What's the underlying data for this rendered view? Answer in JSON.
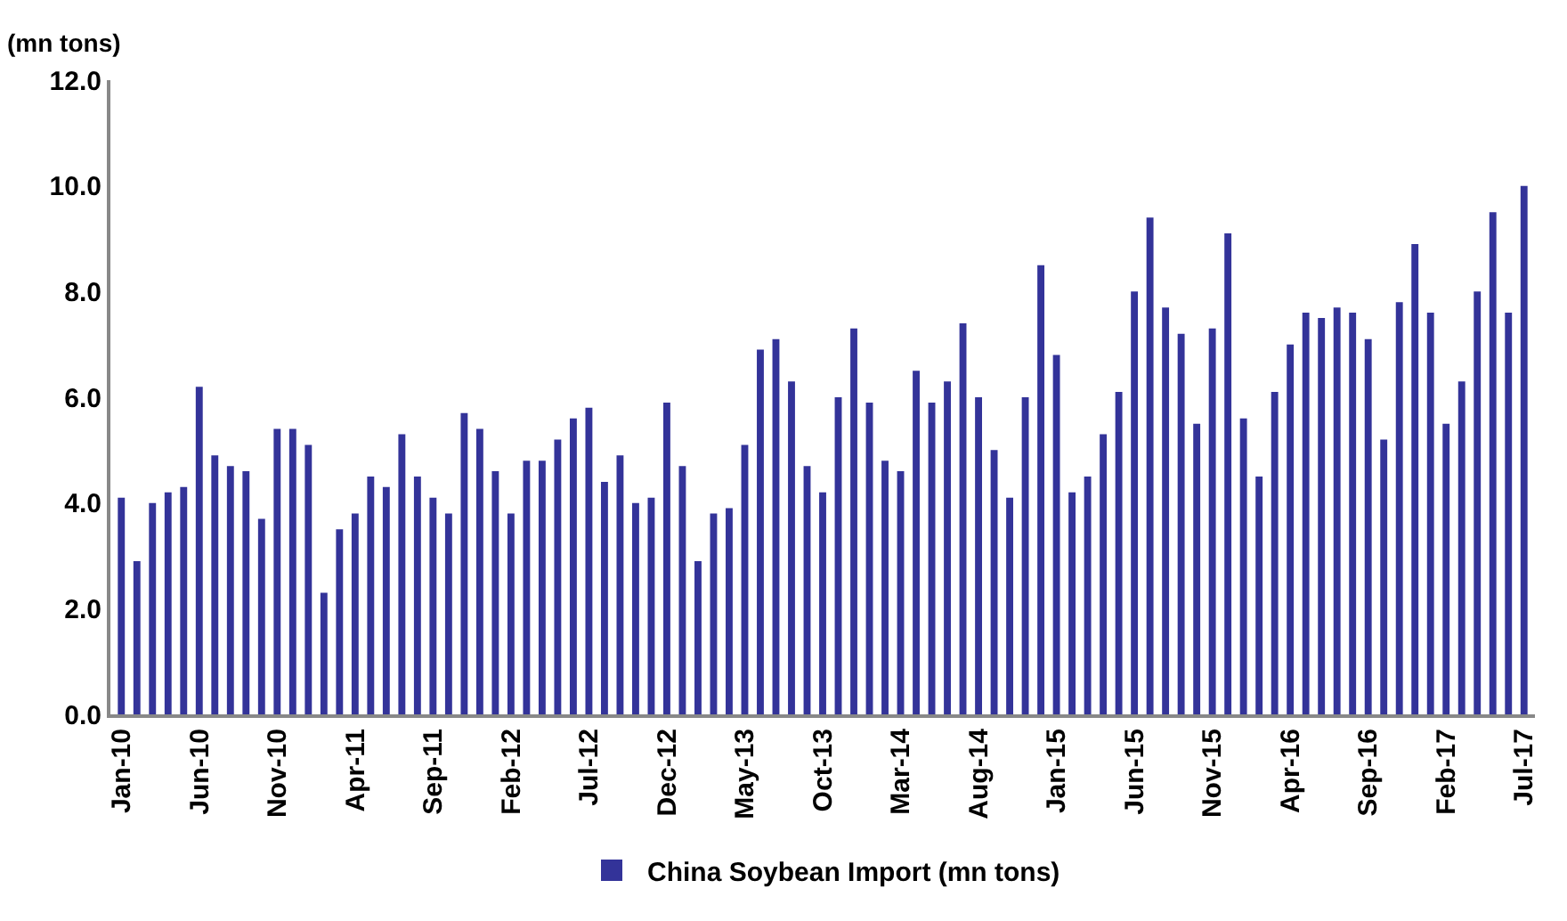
{
  "chart_data": {
    "type": "bar",
    "ylabel": "(mn tons)",
    "categories": [
      "Jan-10",
      null,
      null,
      null,
      null,
      "Jun-10",
      null,
      null,
      null,
      null,
      "Nov-10",
      null,
      null,
      null,
      null,
      "Apr-11",
      null,
      null,
      null,
      null,
      "Sep-11",
      null,
      null,
      null,
      null,
      "Feb-12",
      null,
      null,
      null,
      null,
      "Jul-12",
      null,
      null,
      null,
      null,
      "Dec-12",
      null,
      null,
      null,
      null,
      "May-13",
      null,
      null,
      null,
      null,
      "Oct-13",
      null,
      null,
      null,
      null,
      "Mar-14",
      null,
      null,
      null,
      null,
      "Aug-14",
      null,
      null,
      null,
      null,
      "Jan-15",
      null,
      null,
      null,
      null,
      "Jun-15",
      null,
      null,
      null,
      null,
      "Nov-15",
      null,
      null,
      null,
      null,
      "Apr-16",
      null,
      null,
      null,
      null,
      "Sep-16",
      null,
      null,
      null,
      null,
      "Feb-17",
      null,
      null,
      null,
      null,
      "Jul-17"
    ],
    "series": [
      {
        "name": "China Soybean Import (mn tons)",
        "color": "#333399",
        "values": [
          4.1,
          2.9,
          4.0,
          4.2,
          4.3,
          6.2,
          4.9,
          4.7,
          4.6,
          3.7,
          5.4,
          5.4,
          5.1,
          2.3,
          3.5,
          3.8,
          4.5,
          4.3,
          5.3,
          4.5,
          4.1,
          3.8,
          5.7,
          5.4,
          4.6,
          3.8,
          4.8,
          4.8,
          5.2,
          5.6,
          5.8,
          4.4,
          4.9,
          4.0,
          4.1,
          5.9,
          4.7,
          2.9,
          3.8,
          3.9,
          5.1,
          6.9,
          7.1,
          6.3,
          4.7,
          4.2,
          6.0,
          7.3,
          5.9,
          4.8,
          4.6,
          6.5,
          5.9,
          6.3,
          7.4,
          6.0,
          5.0,
          4.1,
          6.0,
          8.5,
          6.8,
          4.2,
          4.5,
          5.3,
          6.1,
          8.0,
          9.4,
          7.7,
          7.2,
          5.5,
          7.3,
          9.1,
          5.6,
          4.5,
          6.1,
          7.0,
          7.6,
          7.5,
          7.7,
          7.6,
          7.1,
          5.2,
          7.8,
          8.9,
          7.6,
          5.5,
          6.3,
          8.0,
          9.5,
          7.6,
          10.0
        ]
      }
    ],
    "ylim": [
      0,
      12
    ],
    "yticks": [
      {
        "value": 0,
        "label": "0.0"
      },
      {
        "value": 2,
        "label": "2.0"
      },
      {
        "value": 4,
        "label": "4.0"
      },
      {
        "value": 6,
        "label": "6.0"
      },
      {
        "value": 8,
        "label": "8.0"
      },
      {
        "value": 10,
        "label": "10.0"
      },
      {
        "value": 12,
        "label": "12.0"
      }
    ],
    "grid": false,
    "legend": "bottom"
  }
}
